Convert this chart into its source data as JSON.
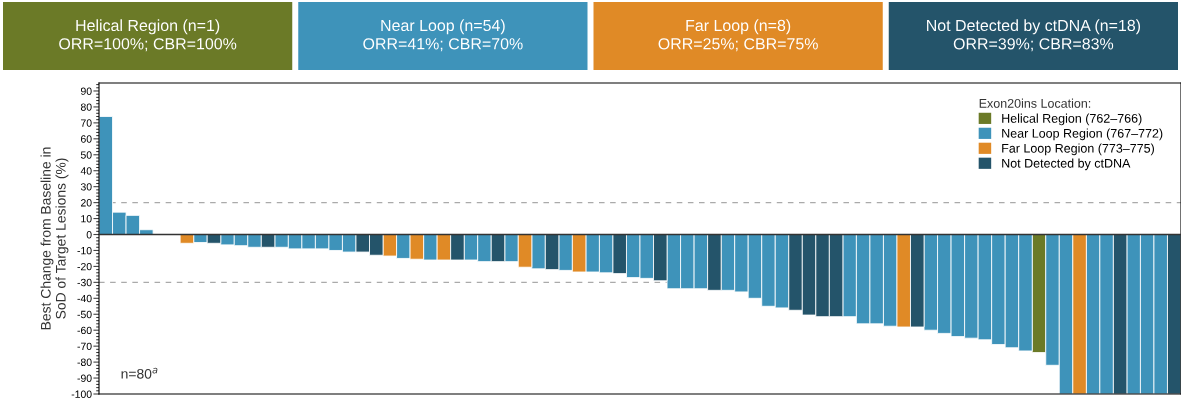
{
  "chart_data": {
    "type": "bar",
    "ylabel": "Best Change from Baseline in\nSoD of Target Lesions (%)",
    "legend_title": "Exon20ins Location:",
    "legend": "top right",
    "grid": false,
    "categories": [
      null,
      null,
      null,
      null,
      null,
      null,
      null,
      null,
      null,
      null,
      null,
      null,
      null,
      null,
      null,
      null,
      null,
      null,
      null,
      null,
      null,
      null,
      null,
      null,
      null,
      null,
      null,
      null,
      null,
      null,
      null,
      null,
      null,
      null,
      null,
      null,
      null,
      null,
      null,
      null,
      null,
      null,
      null,
      null,
      null,
      null,
      null,
      null,
      null,
      null,
      null,
      null,
      null,
      null,
      null,
      null,
      null,
      null,
      null,
      null,
      null,
      null,
      null,
      null,
      null,
      null,
      null,
      null,
      null,
      null,
      null,
      null,
      null,
      null,
      null,
      null,
      null,
      null,
      null,
      null
    ],
    "series": [
      {
        "name": "Helical Region (762–766)",
        "color": "#6b7a27",
        "values": [
          null,
          null,
          null,
          null,
          null,
          null,
          null,
          null,
          null,
          null,
          null,
          null,
          null,
          null,
          null,
          null,
          null,
          null,
          null,
          null,
          null,
          null,
          null,
          null,
          null,
          null,
          null,
          null,
          null,
          null,
          null,
          null,
          null,
          null,
          null,
          null,
          null,
          null,
          null,
          null,
          null,
          null,
          null,
          null,
          null,
          null,
          null,
          null,
          null,
          null,
          null,
          null,
          null,
          null,
          null,
          null,
          null,
          null,
          null,
          null,
          null,
          null,
          null,
          null,
          null,
          null,
          null,
          null,
          null,
          -74,
          null,
          null,
          null,
          null,
          null,
          null,
          null,
          null,
          null,
          null
        ]
      },
      {
        "name": "Near Loop Region (767–772)",
        "color": "#3e93ba",
        "values": [
          74,
          14,
          12,
          3,
          null,
          null,
          null,
          -5,
          null,
          -6.5,
          -7,
          -8,
          null,
          -8,
          -9,
          -9,
          -9,
          -10,
          -11,
          null,
          null,
          null,
          -15,
          null,
          -16,
          null,
          null,
          -16,
          -17,
          null,
          -17,
          null,
          -21.5,
          null,
          -22.5,
          null,
          -23.5,
          -24,
          null,
          -27,
          -27.5,
          null,
          -34,
          -34,
          -34,
          null,
          -35,
          -36,
          -40,
          -45,
          -46,
          null,
          null,
          null,
          null,
          -51.5,
          -56,
          -56,
          -57.5,
          null,
          null,
          -60,
          -62,
          -64,
          -65,
          -66,
          -69,
          -71,
          -73,
          null,
          -82,
          -100,
          null,
          -100,
          -100,
          null,
          -100,
          -100,
          -100,
          null
        ]
      },
      {
        "name": "Far Loop Region (773–775)",
        "color": "#e08a26",
        "values": [
          null,
          null,
          null,
          null,
          null,
          null,
          -5.5,
          null,
          null,
          null,
          null,
          null,
          null,
          null,
          null,
          null,
          null,
          null,
          null,
          null,
          null,
          -13.5,
          null,
          -15.5,
          null,
          -16,
          null,
          null,
          null,
          null,
          null,
          -20.5,
          null,
          null,
          null,
          -23.5,
          null,
          null,
          null,
          null,
          null,
          null,
          null,
          null,
          null,
          null,
          null,
          null,
          null,
          null,
          null,
          null,
          null,
          null,
          null,
          null,
          null,
          null,
          null,
          -58,
          null,
          null,
          null,
          null,
          null,
          null,
          null,
          null,
          null,
          null,
          null,
          null,
          -100,
          null,
          null,
          null,
          null,
          null,
          null,
          null
        ]
      },
      {
        "name": "Not Detected by ctDNA",
        "color": "#24546a",
        "values": [
          null,
          null,
          null,
          null,
          null,
          null,
          null,
          null,
          -5.5,
          null,
          null,
          null,
          -8,
          null,
          null,
          null,
          null,
          null,
          null,
          -11,
          -13,
          null,
          null,
          null,
          null,
          null,
          -16,
          null,
          null,
          -17,
          null,
          null,
          null,
          -22,
          null,
          null,
          null,
          null,
          -24.5,
          null,
          null,
          -29,
          null,
          null,
          null,
          -35,
          null,
          null,
          null,
          null,
          null,
          -47.5,
          -50.5,
          -51.5,
          -51.5,
          null,
          null,
          null,
          null,
          null,
          -58,
          null,
          null,
          null,
          null,
          null,
          null,
          null,
          null,
          null,
          null,
          null,
          null,
          null,
          null,
          -100,
          null,
          null,
          null,
          -100
        ]
      }
    ],
    "ylim": [
      -100,
      95
    ],
    "yticks": [
      -100,
      -90,
      -80,
      -70,
      -60,
      -50,
      -40,
      -30,
      -20,
      -10,
      0,
      10,
      20,
      30,
      40,
      50,
      60,
      70,
      80,
      90
    ],
    "ref_lines": [
      {
        "axis": "y",
        "value": 20,
        "color": "#aaaaaa",
        "line_style": "dashed"
      },
      {
        "axis": "y",
        "value": -30,
        "color": "#aaaaaa",
        "line_style": "dashed"
      }
    ],
    "annotations": [
      "Helical Region (n=1)\nORR=100%; CBR=100%",
      "Near Loop (n=54)\nORR=41%; CBR=70%",
      "Far Loop (n=8)\nORR=25%; CBR=75%",
      "Not Detected by ctDNA (n=18)\nORR=39%; CBR=83%",
      "n=80$^{a}$"
    ]
  }
}
